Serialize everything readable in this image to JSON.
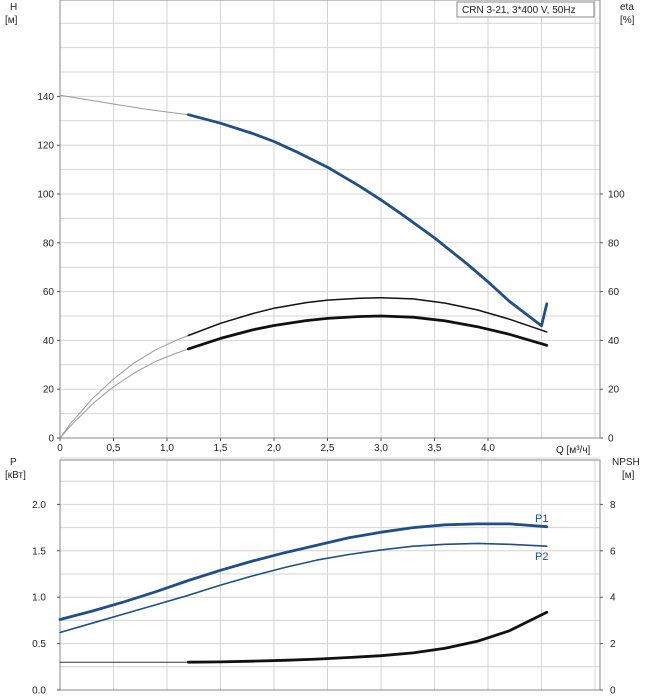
{
  "legend_box": "CRN 3-21, 3*400 V, 50Hz",
  "colors": {
    "blue": "#1f4f86",
    "blue_thin": "#6f8fb5",
    "black": "#111111",
    "thin": "#9a9a9a"
  },
  "chart_data": [
    {
      "type": "line",
      "title": "",
      "xlabel": "Q [м³/ч]",
      "x_ticks": [
        "0",
        "0,5",
        "1,0",
        "1,5",
        "2,0",
        "2,5",
        "3,0",
        "3,5",
        "4,0"
      ],
      "xlim": [
        0,
        5
      ],
      "y_left": {
        "label_top": "H",
        "label_unit": "[м]",
        "ticks": [
          "0",
          "20",
          "40",
          "60",
          "80",
          "100",
          "120",
          "140"
        ],
        "range": [
          0,
          180
        ]
      },
      "y_right": {
        "label_top": "eta",
        "label_unit": "[%]",
        "ticks": [
          "0",
          "20",
          "40",
          "60",
          "80",
          "100"
        ],
        "range": [
          0,
          180
        ]
      },
      "grid": true,
      "series": [
        {
          "axis": "left",
          "style": "thin",
          "x": [
            0,
            0.2,
            0.4,
            0.6,
            0.8,
            1.0,
            1.2
          ],
          "y": [
            140.5,
            139.0,
            137.6,
            136.2,
            134.8,
            133.6,
            132.5
          ]
        },
        {
          "axis": "left",
          "style": "blue",
          "x": [
            1.2,
            1.5,
            1.8,
            2.0,
            2.2,
            2.5,
            2.8,
            3.0,
            3.2,
            3.5,
            3.8,
            4.0,
            4.2,
            4.5,
            4.55
          ],
          "y": [
            132.5,
            129.0,
            124.8,
            121.5,
            117.5,
            111.0,
            103.2,
            97.6,
            91.5,
            82.0,
            71.5,
            64.0,
            56.0,
            46.0,
            55.0
          ]
        },
        {
          "axis": "right",
          "style": "thin",
          "x": [
            0,
            0.1,
            0.3,
            0.5,
            0.7,
            0.9,
            1.1,
            1.2
          ],
          "y": [
            0,
            6.0,
            16.0,
            24.2,
            31.0,
            36.3,
            40.3,
            42.0
          ]
        },
        {
          "axis": "right",
          "style": "black",
          "x": [
            1.2,
            1.5,
            1.8,
            2.0,
            2.3,
            2.5,
            2.8,
            3.0,
            3.3,
            3.6,
            3.9,
            4.2,
            4.55
          ],
          "y": [
            42.0,
            47.0,
            51.0,
            53.2,
            55.5,
            56.5,
            57.3,
            57.5,
            57.0,
            55.3,
            52.5,
            48.7,
            43.5
          ]
        },
        {
          "axis": "left",
          "style": "thin",
          "x": [
            0,
            0.1,
            0.3,
            0.5,
            0.7,
            0.9,
            1.1,
            1.2
          ],
          "y": [
            0,
            5.0,
            13.8,
            21.0,
            26.8,
            31.5,
            35.0,
            36.5
          ]
        },
        {
          "axis": "left",
          "style": "black-bold",
          "x": [
            1.2,
            1.5,
            1.8,
            2.0,
            2.3,
            2.5,
            2.8,
            3.0,
            3.3,
            3.6,
            3.9,
            4.2,
            4.55
          ],
          "y": [
            36.5,
            40.8,
            44.3,
            46.1,
            48.1,
            49.0,
            49.8,
            50.0,
            49.5,
            48.0,
            45.6,
            42.5,
            38.0
          ]
        }
      ]
    },
    {
      "type": "line",
      "title": "",
      "xlim": [
        0,
        5
      ],
      "y_left": {
        "label_top": "P",
        "label_unit": "[кВт]",
        "ticks": [
          "0.0",
          "0.5",
          "1.0",
          "1.5",
          "2.0"
        ],
        "range": [
          0,
          2.5
        ]
      },
      "y_right": {
        "label_top": "NPSH",
        "label_unit": "[м]",
        "ticks": [
          "0",
          "2",
          "4",
          "6",
          "8"
        ],
        "range": [
          0,
          10
        ]
      },
      "grid": true,
      "series": [
        {
          "name": "P1",
          "axis": "left",
          "style": "blue",
          "x": [
            0,
            0.3,
            0.6,
            0.9,
            1.2,
            1.5,
            1.8,
            2.1,
            2.4,
            2.7,
            3.0,
            3.3,
            3.6,
            3.9,
            4.2,
            4.55
          ],
          "y": [
            0.76,
            0.85,
            0.95,
            1.06,
            1.18,
            1.29,
            1.39,
            1.48,
            1.56,
            1.64,
            1.7,
            1.75,
            1.78,
            1.79,
            1.79,
            1.76
          ],
          "labels": [
            "P1"
          ]
        },
        {
          "name": "P2",
          "axis": "left",
          "style": "blue-thin",
          "x": [
            0,
            0.3,
            0.6,
            0.9,
            1.2,
            1.5,
            1.8,
            2.1,
            2.4,
            2.7,
            3.0,
            3.3,
            3.6,
            3.9,
            4.2,
            4.55
          ],
          "y": [
            0.62,
            0.72,
            0.82,
            0.92,
            1.02,
            1.13,
            1.23,
            1.32,
            1.4,
            1.46,
            1.51,
            1.55,
            1.57,
            1.58,
            1.57,
            1.55
          ],
          "labels": [
            "P2"
          ]
        },
        {
          "axis": "right",
          "style": "thin-flat",
          "x": [
            0,
            1.2
          ],
          "y": [
            1.2,
            1.2
          ]
        },
        {
          "axis": "right",
          "style": "black-bold",
          "x": [
            1.2,
            1.5,
            1.8,
            2.1,
            2.4,
            2.7,
            3.0,
            3.3,
            3.6,
            3.9,
            4.2,
            4.55
          ],
          "y": [
            1.2,
            1.21,
            1.24,
            1.28,
            1.33,
            1.4,
            1.48,
            1.6,
            1.8,
            2.1,
            2.55,
            3.35
          ]
        }
      ]
    }
  ]
}
